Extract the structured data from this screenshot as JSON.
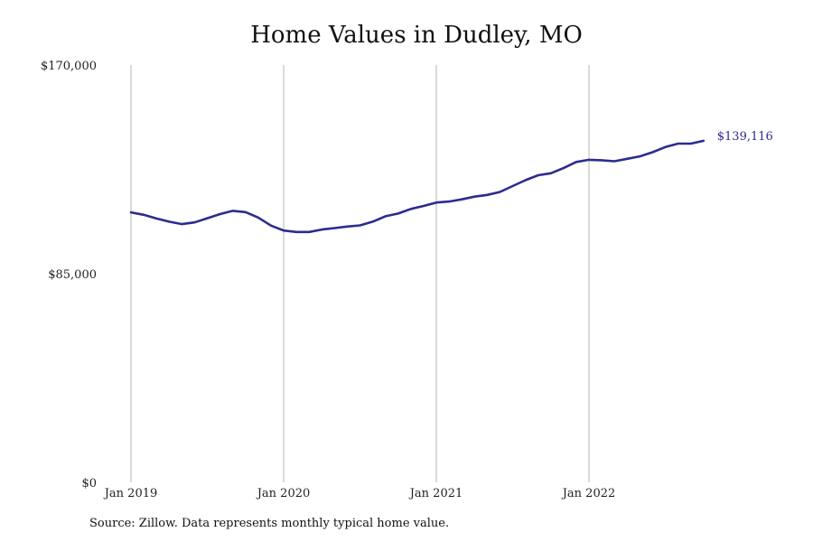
{
  "chart_data": {
    "type": "line",
    "title": "Home Values in Dudley, MO",
    "xlabel": "",
    "ylabel": "",
    "ylim": [
      0,
      170000
    ],
    "y_ticks": [
      0,
      85000,
      170000
    ],
    "y_tick_labels": [
      "$0",
      "$85,000",
      "$170,000"
    ],
    "x_ticks": [
      "2019-01",
      "2020-01",
      "2021-01",
      "2022-01"
    ],
    "x_tick_labels": [
      "Jan 2019",
      "Jan 2020",
      "Jan 2021",
      "Jan 2022"
    ],
    "grid": "vertical",
    "line_color": "#2e2b8f",
    "end_label": "$139,116",
    "series": [
      {
        "x": [
          "2019-01",
          "2019-02",
          "2019-03",
          "2019-04",
          "2019-05",
          "2019-06",
          "2019-07",
          "2019-08",
          "2019-09",
          "2019-10",
          "2019-11",
          "2019-12",
          "2020-01",
          "2020-02",
          "2020-03",
          "2020-04",
          "2020-05",
          "2020-06",
          "2020-07",
          "2020-08",
          "2020-09",
          "2020-10",
          "2020-11",
          "2020-12",
          "2021-01",
          "2021-02",
          "2021-03",
          "2021-04",
          "2021-05",
          "2021-06",
          "2021-07",
          "2021-08",
          "2021-09",
          "2021-10",
          "2021-11",
          "2021-12",
          "2022-01",
          "2022-02",
          "2022-03",
          "2022-04",
          "2022-05",
          "2022-06",
          "2022-07",
          "2022-08",
          "2022-09",
          "2022-10"
        ],
        "values": [
          110000,
          109000,
          107500,
          106200,
          105200,
          105900,
          107600,
          109300,
          110600,
          110100,
          107900,
          104600,
          102600,
          102000,
          102000,
          103000,
          103600,
          104200,
          104700,
          106200,
          108400,
          109500,
          111400,
          112600,
          114000,
          114400,
          115300,
          116400,
          117100,
          118300,
          120700,
          123100,
          125100,
          125900,
          128000,
          130500,
          131400,
          131200,
          130800,
          131800,
          132800,
          134500,
          136600,
          138000,
          138000,
          139116
        ]
      }
    ]
  },
  "source_note": "Source: Zillow. Data represents monthly typical home value."
}
